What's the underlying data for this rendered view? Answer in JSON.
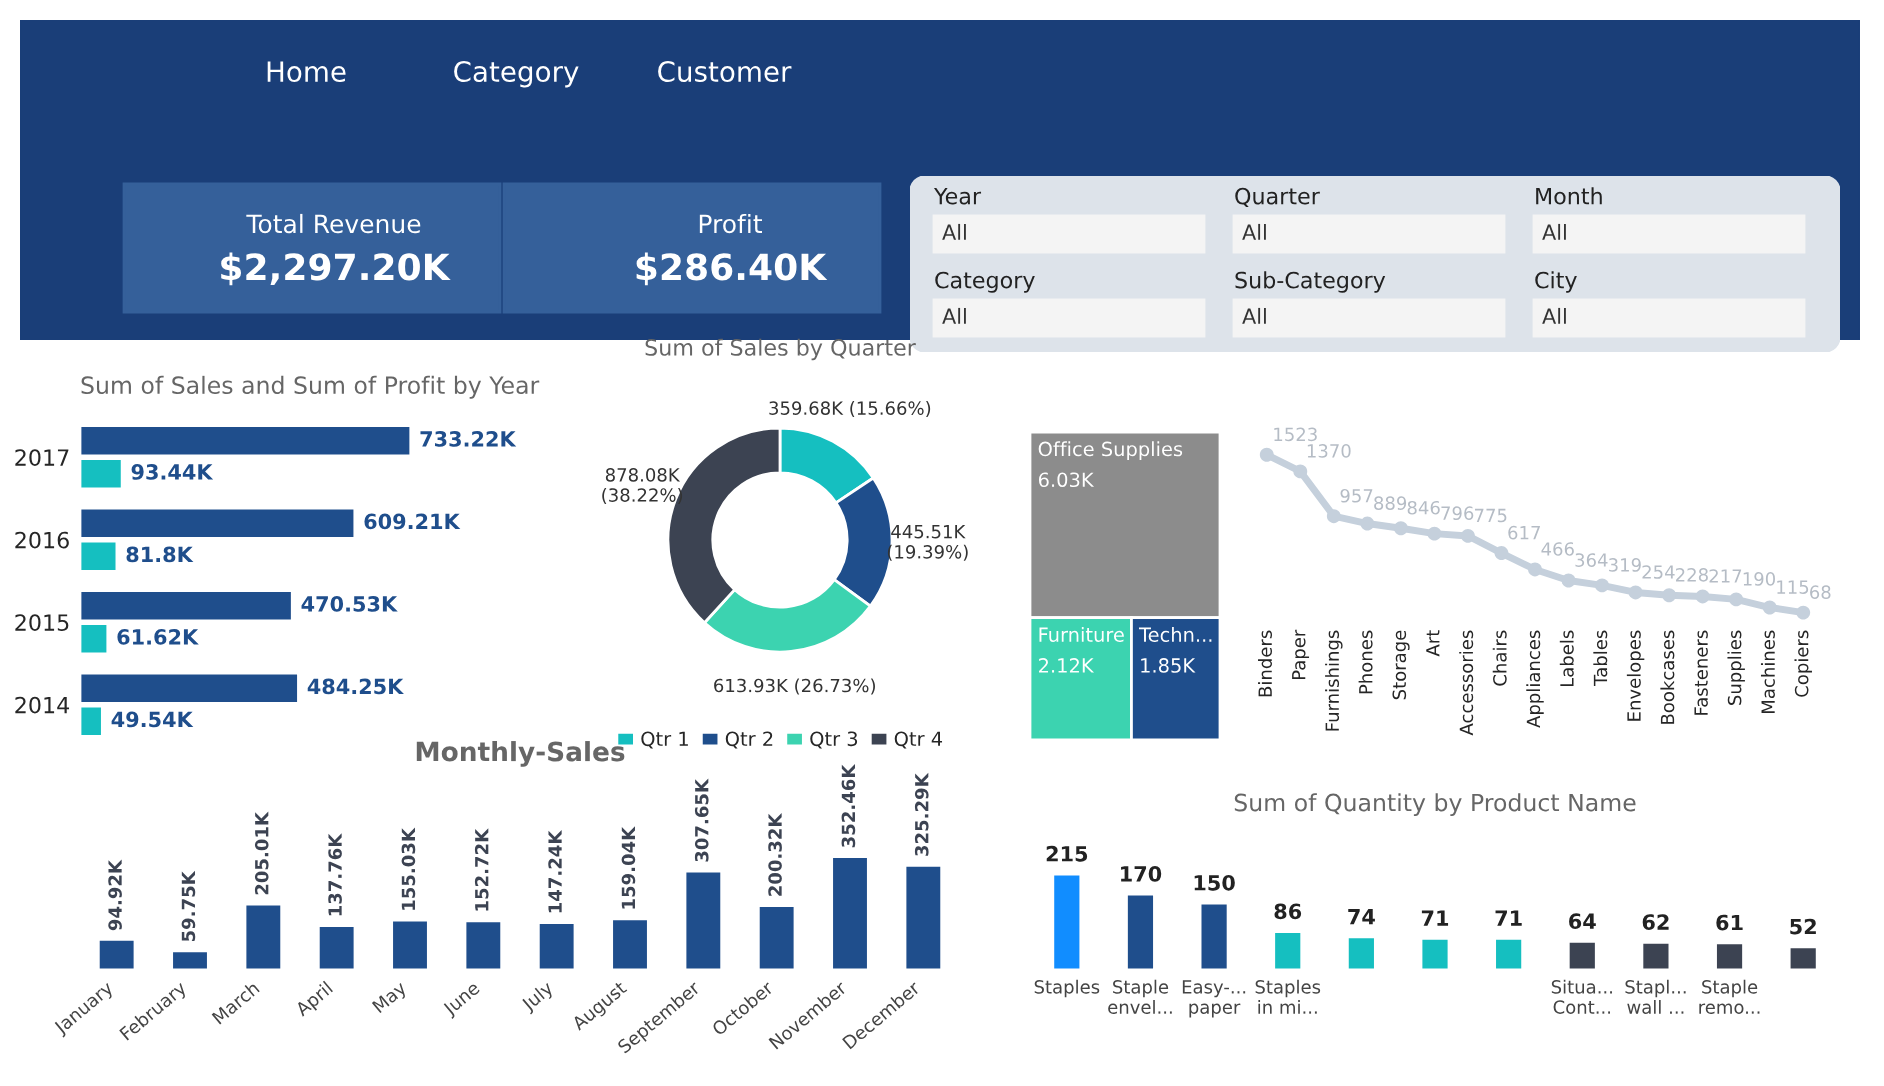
{
  "chart_data": [
    {
      "type": "other",
      "annotations": [
        "Home",
        "Category",
        "Customer",
        "Total Revenue",
        "$2,297.20K",
        "Profit",
        "$286.40K"
      ]
    },
    {
      "type": "other",
      "annotations": [
        "Year",
        "All",
        "Quarter",
        "All",
        "Month",
        "All",
        "Category",
        "All",
        "Sub-Category",
        "All",
        "City",
        "All"
      ]
    },
    {
      "type": "bar",
      "orientation": "horizontal",
      "title": "Sum of Sales and Sum of Profit by Year",
      "categories": [
        "2017",
        "2016",
        "2015",
        "2014"
      ],
      "tick_labels": "y",
      "series": [
        {
          "color": "#1f4e8c",
          "values": [
            733.22,
            609.21,
            470.53,
            484.25
          ],
          "value_labels": [
            "733.22K",
            "609.21K",
            "470.53K",
            "484.25K"
          ]
        },
        {
          "color": "#15bfc0",
          "values": [
            93.44,
            81.8,
            61.62,
            49.54
          ],
          "value_labels": [
            "93.44K",
            "81.8K",
            "61.62K",
            "49.54K"
          ]
        }
      ]
    },
    {
      "type": "donut",
      "title": "Sum of Sales by Quarter",
      "categories": [
        "Qtr 1",
        "Qtr 2",
        "Qtr 3",
        "Qtr 4"
      ],
      "values": [
        15.66,
        19.39,
        26.73,
        38.22
      ],
      "value_labels": [
        "359.68K (15.66%)",
        "445.51K\n(19.39%)",
        "613.93K (26.73%)",
        "878.08K\n(38.22%)"
      ],
      "colors": [
        "#15bfc0",
        "#1f4e8c",
        "#3cd3b0",
        "#3c4352"
      ],
      "legend": "bottom"
    },
    {
      "type": "other",
      "categories": [
        "Office Supplies",
        "Furniture",
        "Techn..."
      ],
      "values": [
        6.03,
        2.12,
        1.85
      ],
      "value_labels": [
        "6.03K",
        "2.12K",
        "1.85K"
      ],
      "colors": [
        "#8c8c8c",
        "#3cd3b0",
        "#1f4e8c"
      ]
    },
    {
      "type": "line",
      "categories": [
        "Binders",
        "Paper",
        "Furnishings",
        "Phones",
        "Storage",
        "Art",
        "Accessories",
        "Chairs",
        "Appliances",
        "Labels",
        "Tables",
        "Envelopes",
        "Bookcases",
        "Fasteners",
        "Supplies",
        "Machines",
        "Copiers"
      ],
      "values": [
        1523,
        1370,
        957,
        889,
        846,
        796,
        775,
        617,
        466,
        364,
        319,
        254,
        228,
        217,
        190,
        115,
        68
      ],
      "data_labels": true,
      "tick_labels": "x",
      "marker": "circle",
      "color": "#c5d0dc"
    },
    {
      "type": "bar",
      "title": "Monthly-Sales",
      "categories": [
        "January",
        "February",
        "March",
        "April",
        "May",
        "June",
        "July",
        "August",
        "September",
        "October",
        "November",
        "December"
      ],
      "values": [
        94.92,
        59.75,
        205.01,
        137.76,
        155.03,
        152.72,
        147.24,
        159.04,
        307.65,
        200.32,
        352.46,
        325.29
      ],
      "value_labels": [
        "94.92K",
        "59.75K",
        "205.01K",
        "137.76K",
        "155.03K",
        "152.72K",
        "147.24K",
        "159.04K",
        "307.65K",
        "200.32K",
        "352.46K",
        "325.29K"
      ],
      "color": "#1f4e8c",
      "tick_labels": "x"
    },
    {
      "type": "bar",
      "title": "Sum of Quantity by Product Name",
      "categories": [
        "Staples",
        "Staple\nenvel...",
        "Easy-...\npaper",
        "Staples\nin mi...",
        null,
        null,
        null,
        "Situa...\nCont...",
        "Stapl...\nwall ...",
        "Staple\nremo...",
        null
      ],
      "values": [
        215,
        170,
        150,
        86,
        74,
        71,
        71,
        64,
        62,
        61,
        52
      ],
      "data_labels": true,
      "tick_labels": "x",
      "colors": [
        "#118dff",
        "#1f4e8c",
        "#1f4e8c",
        "#15bfc0",
        "#15bfc0",
        "#15bfc0",
        "#15bfc0",
        "#3c4352",
        "#3c4352",
        "#3c4352",
        "#3c4352"
      ]
    }
  ]
}
